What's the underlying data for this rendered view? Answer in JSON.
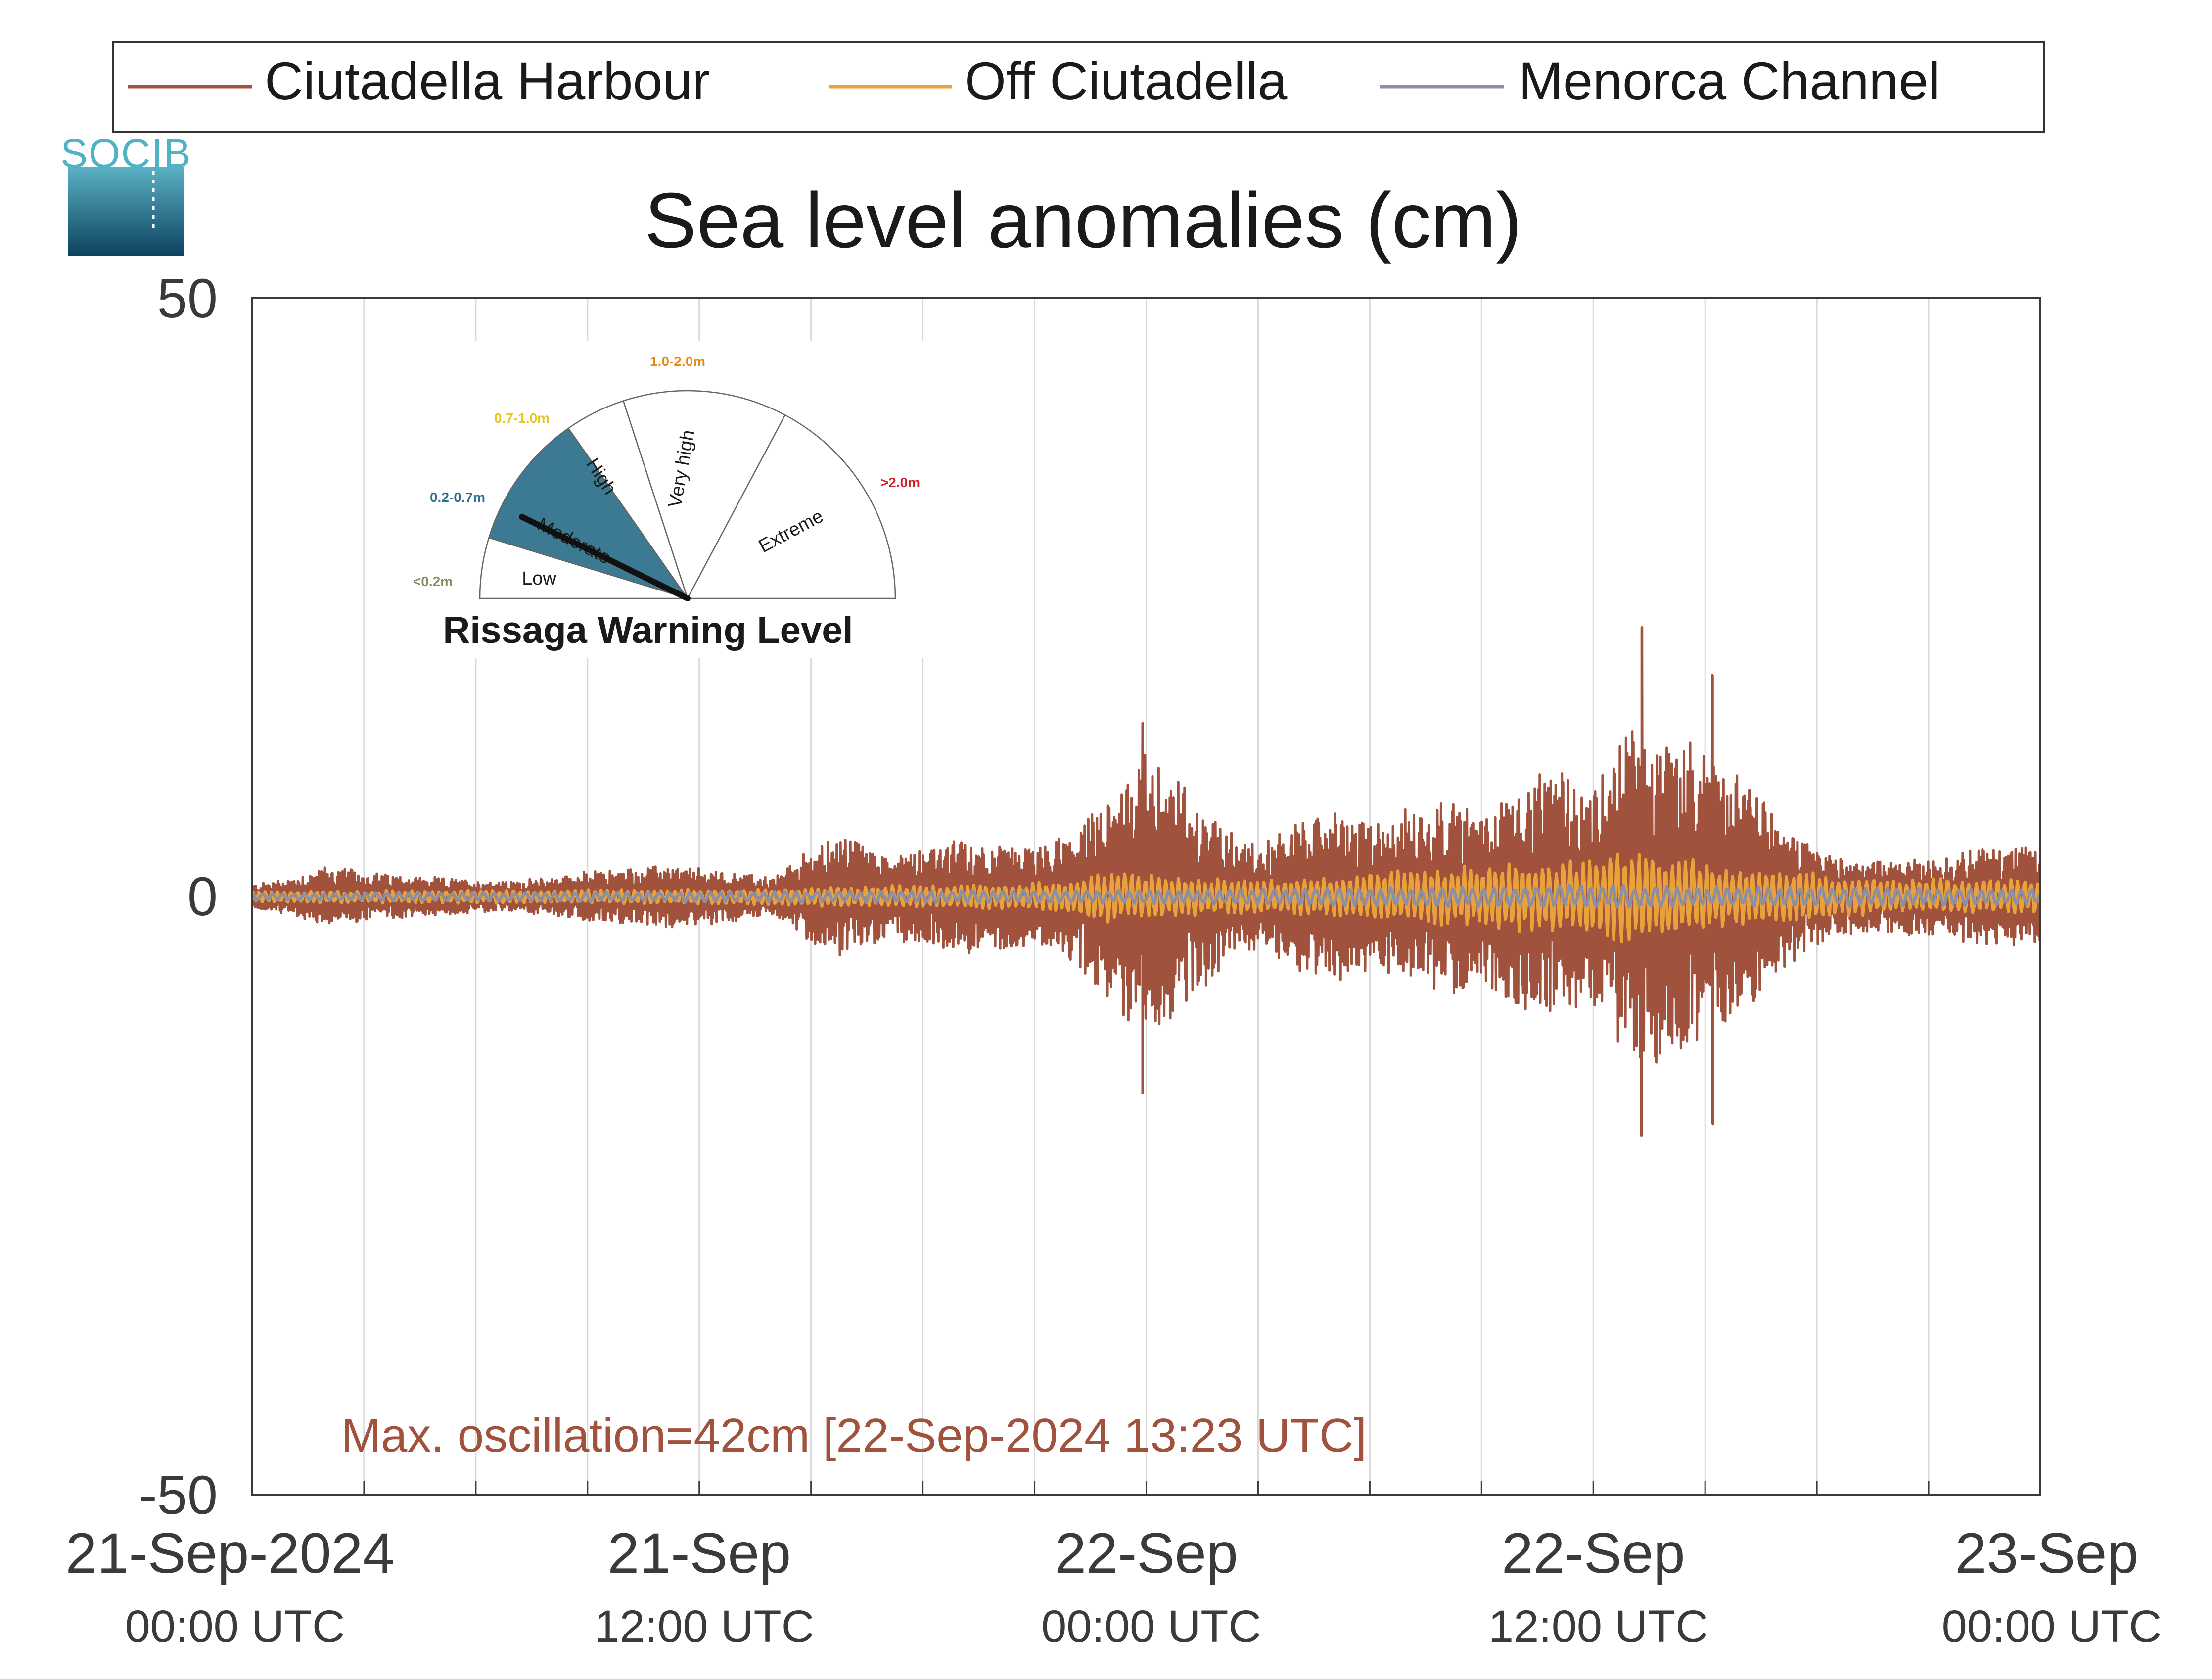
{
  "chart_data": {
    "type": "line",
    "title": "Sea level anomalies (cm)",
    "xlabel": "",
    "ylabel": "",
    "ylim": [
      -50,
      50
    ],
    "yticks": [
      {
        "value": 50,
        "label": "50"
      },
      {
        "value": 0,
        "label": "0"
      },
      {
        "value": -50,
        "label": "-50"
      }
    ],
    "xlim_hours": [
      0,
      48
    ],
    "x_gridline_hours": [
      3,
      6,
      9,
      12,
      15,
      18,
      21,
      24,
      27,
      30,
      33,
      36,
      39,
      42,
      45
    ],
    "xticks": [
      {
        "hour": 0,
        "date": "21-Sep-2024",
        "time": "00:00 UTC"
      },
      {
        "hour": 12,
        "date": "21-Sep",
        "time": "12:00 UTC"
      },
      {
        "hour": 24,
        "date": "22-Sep",
        "time": "00:00 UTC"
      },
      {
        "hour": 36,
        "date": "22-Sep",
        "time": "12:00 UTC"
      },
      {
        "hour": 48,
        "date": "23-Sep",
        "time": "00:00 UTC"
      }
    ],
    "grid": "vertical",
    "legend_position": "top",
    "series": [
      {
        "name": "Ciutadella Harbour",
        "color": "#a0523d",
        "amplitude_envelope_cm": [
          [
            0,
            1
          ],
          [
            1,
            1.5
          ],
          [
            2,
            2.5
          ],
          [
            3,
            2
          ],
          [
            5,
            1.5
          ],
          [
            7,
            1.2
          ],
          [
            9,
            2
          ],
          [
            11,
            2.5
          ],
          [
            13,
            2
          ],
          [
            14,
            1.5
          ],
          [
            15,
            4
          ],
          [
            16,
            5
          ],
          [
            17,
            3.5
          ],
          [
            18,
            4
          ],
          [
            19,
            4.5
          ],
          [
            21,
            4
          ],
          [
            22,
            5
          ],
          [
            23,
            8
          ],
          [
            24,
            12
          ],
          [
            25,
            9
          ],
          [
            26,
            6
          ],
          [
            27,
            4
          ],
          [
            28,
            6
          ],
          [
            29,
            7
          ],
          [
            30,
            6
          ],
          [
            31,
            7
          ],
          [
            32,
            8
          ],
          [
            33,
            7
          ],
          [
            34,
            9
          ],
          [
            35,
            10
          ],
          [
            36,
            9
          ],
          [
            37,
            14
          ],
          [
            38,
            13
          ],
          [
            39,
            12
          ],
          [
            40,
            10
          ],
          [
            41,
            6
          ],
          [
            42,
            4
          ],
          [
            43,
            3
          ],
          [
            44,
            3
          ],
          [
            45,
            3
          ],
          [
            46,
            4
          ],
          [
            47,
            4
          ],
          [
            48,
            4
          ]
        ],
        "extremes": [
          {
            "hour": 23.9,
            "value": 14.5
          },
          {
            "hour": 23.9,
            "value": -16.5
          },
          {
            "hour": 37.3,
            "value": 22.5
          },
          {
            "hour": 37.3,
            "value": -20
          },
          {
            "hour": 39.2,
            "value": 18.5
          },
          {
            "hour": 39.2,
            "value": -19
          }
        ]
      },
      {
        "name": "Off Ciutadella",
        "color": "#e9a23b",
        "amplitude_envelope_cm": [
          [
            0,
            0.5
          ],
          [
            12,
            0.6
          ],
          [
            15,
            0.8
          ],
          [
            18,
            1
          ],
          [
            21,
            1.2
          ],
          [
            22,
            1.5
          ],
          [
            23,
            2.5
          ],
          [
            24,
            2
          ],
          [
            26,
            1.5
          ],
          [
            28,
            1.5
          ],
          [
            30,
            2
          ],
          [
            32,
            2.5
          ],
          [
            34,
            3
          ],
          [
            36,
            3.5
          ],
          [
            37,
            4
          ],
          [
            38,
            3.5
          ],
          [
            40,
            2.5
          ],
          [
            42,
            2
          ],
          [
            44,
            1.5
          ],
          [
            46,
            1.5
          ],
          [
            48,
            1.5
          ]
        ]
      },
      {
        "name": "Menorca Channel",
        "color": "#8a8fa3",
        "amplitude_envelope_cm": [
          [
            0,
            0.3
          ],
          [
            24,
            0.6
          ],
          [
            36,
            1
          ],
          [
            48,
            0.7
          ]
        ]
      }
    ],
    "annotations": [
      {
        "text": "Max. oscillation=42cm [22-Sep-2024 13:23 UTC]",
        "color": "#a0523d"
      }
    ]
  },
  "logo": {
    "text": "SOCIB",
    "color": "#4fb3c6",
    "gradient_top": "#5ab1c4",
    "gradient_bottom": "#0d4160"
  },
  "warning_inset": {
    "title": "Rissaga Warning Level",
    "active_level": "Moderate",
    "active_fill": "#3c7a94",
    "levels": [
      {
        "label": "Low",
        "range": "<0.2m",
        "range_color": "#8a8a5a"
      },
      {
        "label": "Moderate",
        "range": "0.2-0.7m",
        "range_color": "#2f6f90"
      },
      {
        "label": "High",
        "range": "0.7-1.0m",
        "range_color": "#e8c619"
      },
      {
        "label": "Very high",
        "range": "1.0-2.0m",
        "range_color": "#e88a14"
      },
      {
        "label": "Extreme",
        "range": ">2.0m",
        "range_color": "#d0202a"
      }
    ]
  }
}
